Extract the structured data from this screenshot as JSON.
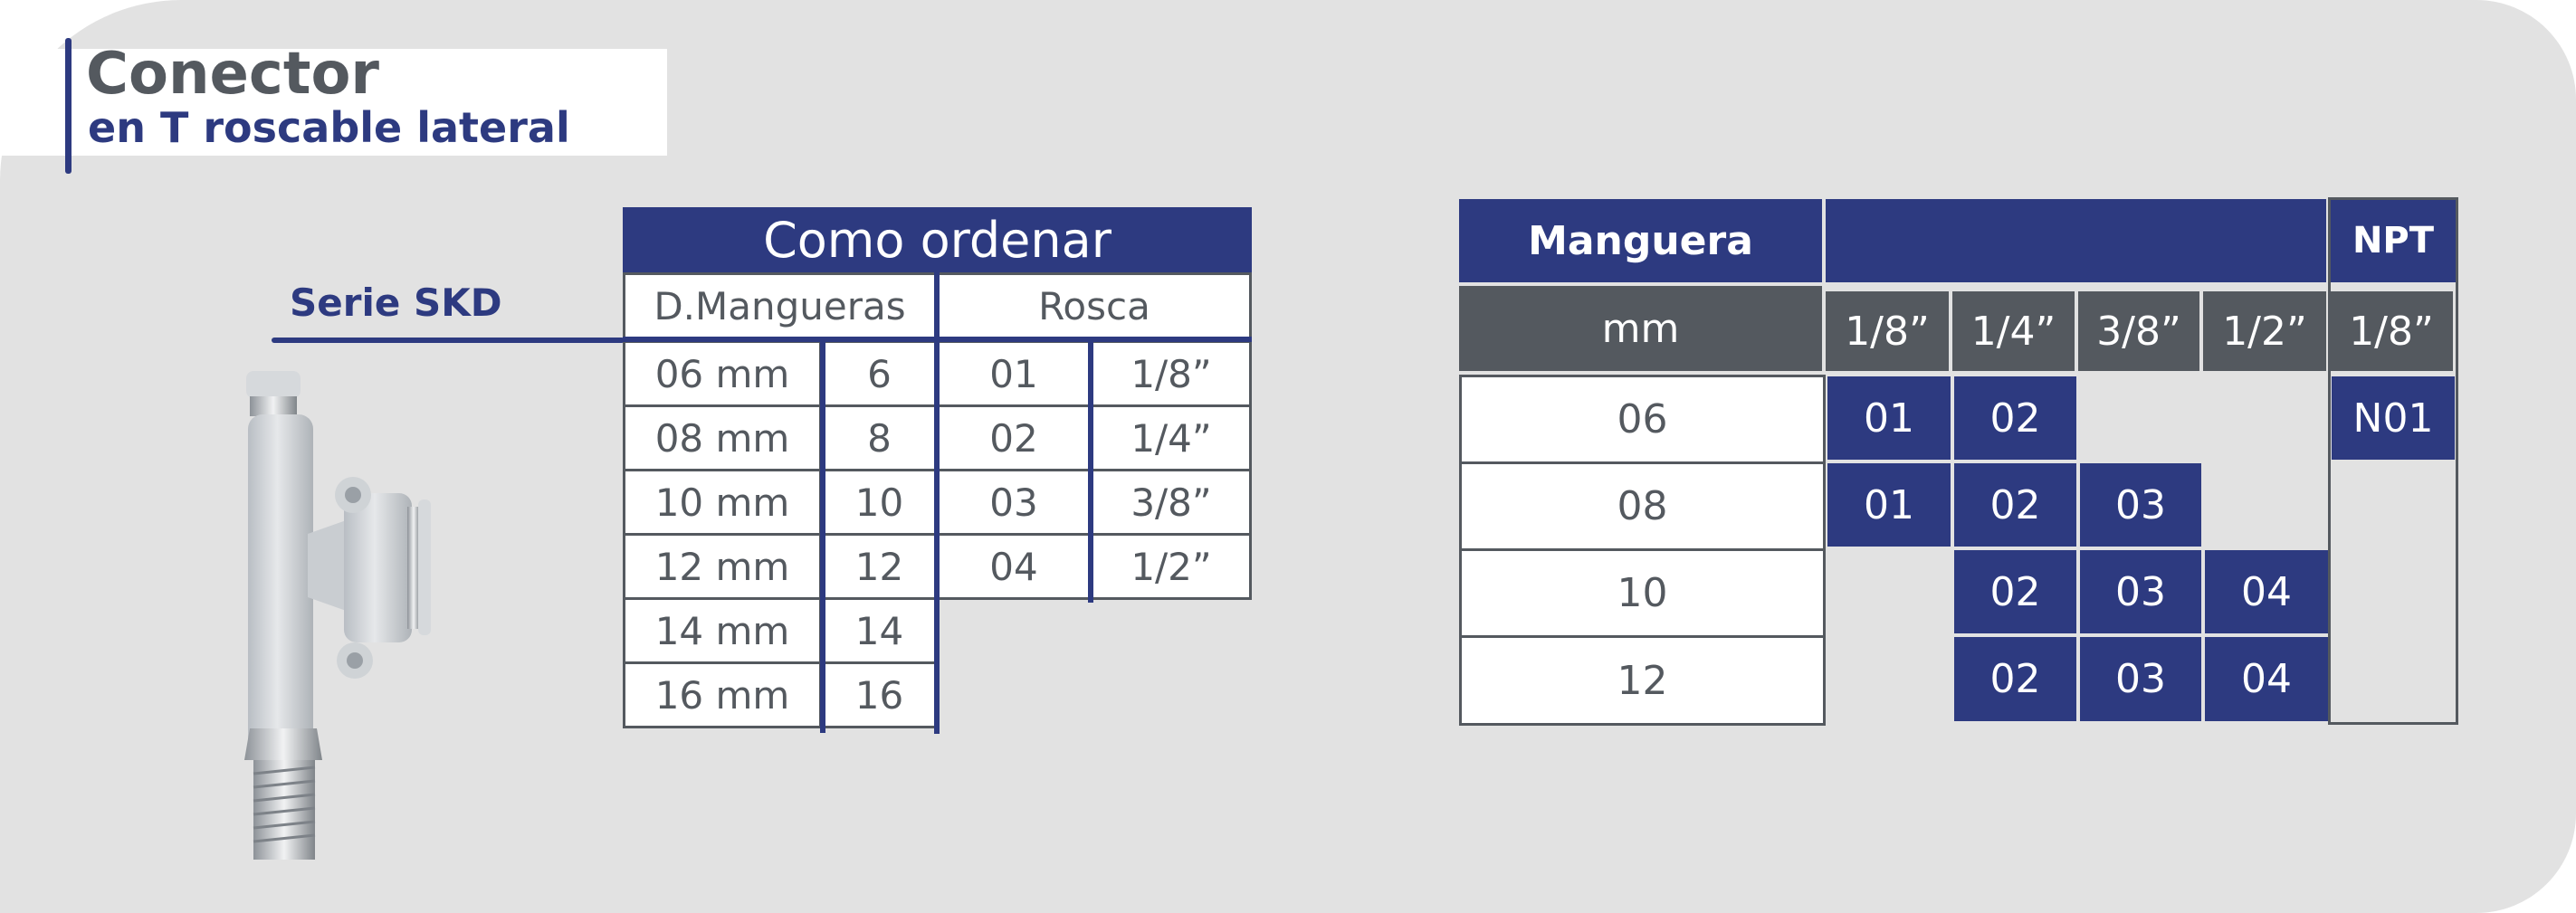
{
  "title": {
    "line1": "Conector",
    "line2": "en T roscable lateral"
  },
  "series_label": "Serie SKD",
  "colors": {
    "brand_navy": "#2d3a80",
    "dark_gray": "#54595f",
    "background": "#e2e2e2"
  },
  "product_image": {
    "icon": "t-connector-fitting-icon"
  },
  "order_table": {
    "title": "Como ordenar",
    "col_headers": [
      "D.Mangueras",
      "Rosca"
    ],
    "hose_rows": [
      {
        "size": "06 mm",
        "code": "6"
      },
      {
        "size": "08 mm",
        "code": "8"
      },
      {
        "size": "10 mm",
        "code": "10"
      },
      {
        "size": "12 mm",
        "code": "12"
      },
      {
        "size": "14 mm",
        "code": "14"
      },
      {
        "size": "16 mm",
        "code": "16"
      }
    ],
    "thread_rows": [
      {
        "code": "01",
        "size": "1/8”"
      },
      {
        "code": "02",
        "size": "1/4”"
      },
      {
        "code": "03",
        "size": "3/8”"
      },
      {
        "code": "04",
        "size": "1/2”"
      }
    ]
  },
  "compat_table": {
    "header_left": "Manguera",
    "header_npt": "NPT",
    "unit_label": "mm",
    "thread_headers": [
      "1/8”",
      "1/4”",
      "3/8”",
      "1/2”",
      "1/8”"
    ],
    "rows": [
      {
        "hose": "06",
        "cells": [
          "01",
          "02",
          "",
          "",
          "N01"
        ]
      },
      {
        "hose": "08",
        "cells": [
          "01",
          "02",
          "03",
          "",
          ""
        ]
      },
      {
        "hose": "10",
        "cells": [
          "",
          "02",
          "03",
          "04",
          ""
        ]
      },
      {
        "hose": "12",
        "cells": [
          "",
          "02",
          "03",
          "04",
          ""
        ]
      }
    ]
  }
}
